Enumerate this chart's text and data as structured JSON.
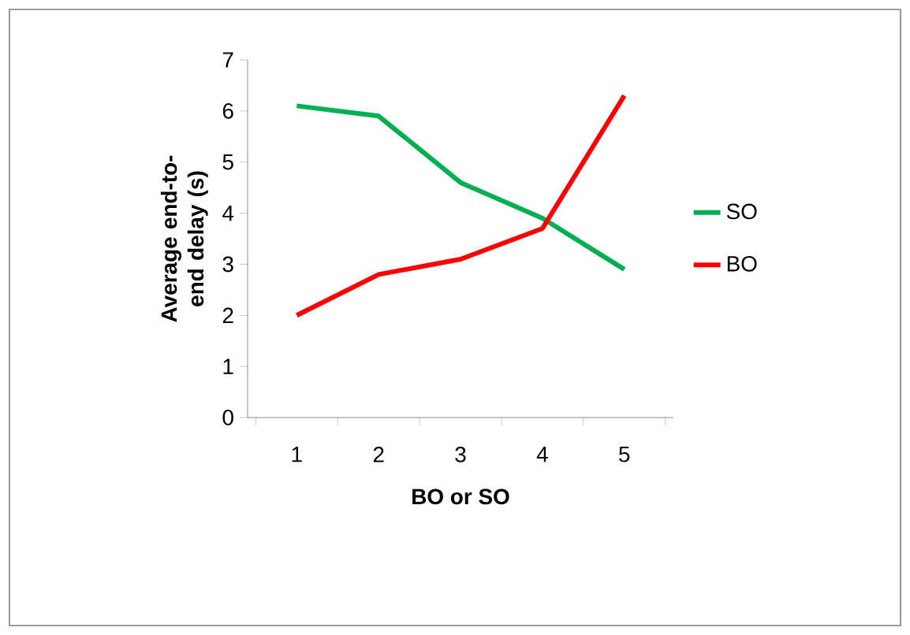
{
  "chart_data": {
    "type": "line",
    "xlabel": "BO or  SO",
    "ylabel": "Average end-to-end delay (s)",
    "categories": [
      "1",
      "2",
      "3",
      "4",
      "5"
    ],
    "series": [
      {
        "name": "SO",
        "color": "#00b050",
        "values": [
          6.1,
          5.9,
          4.6,
          3.9,
          2.9
        ]
      },
      {
        "name": "BO",
        "color": "#ff0000",
        "values": [
          2.0,
          2.8,
          3.1,
          3.7,
          6.3
        ]
      }
    ],
    "ylim": [
      0,
      7
    ],
    "yticks": [
      0,
      1,
      2,
      3,
      4,
      5,
      6,
      7
    ],
    "grid": false,
    "legend": "right",
    "marker": "none",
    "line_style": "solid"
  }
}
